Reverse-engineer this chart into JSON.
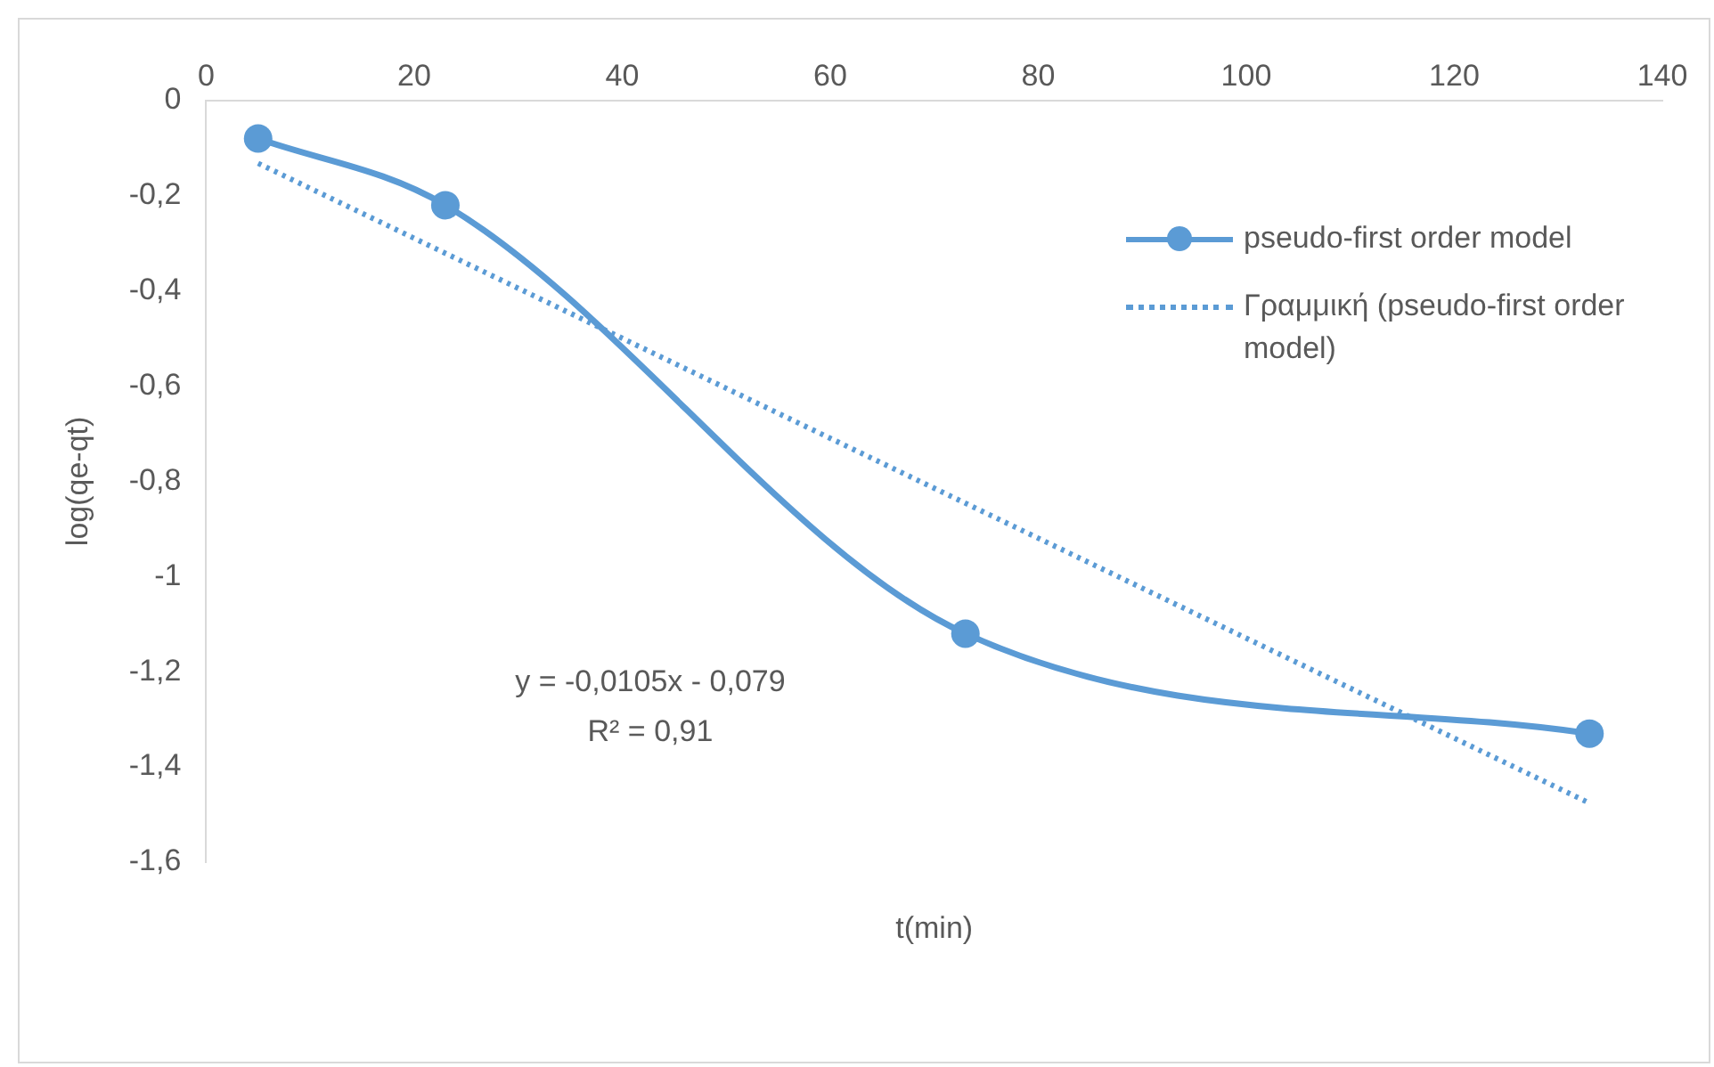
{
  "chart_data": {
    "type": "line",
    "xlabel": "t(min)",
    "ylabel": "log(qe-qt)",
    "xlim": [
      0,
      140
    ],
    "xticks": [
      0,
      20,
      40,
      60,
      80,
      100,
      120,
      140
    ],
    "ylim": [
      -1.6,
      0
    ],
    "yticks": [
      {
        "value": 0,
        "label": "0"
      },
      {
        "value": -0.2,
        "label": "-0,2"
      },
      {
        "value": -0.4,
        "label": "-0,4"
      },
      {
        "value": -0.6,
        "label": "-0,6"
      },
      {
        "value": -0.8,
        "label": "-0,8"
      },
      {
        "value": -1,
        "label": "-1"
      },
      {
        "value": -1.2,
        "label": "-1,2"
      },
      {
        "value": -1.4,
        "label": "-1,4"
      },
      {
        "value": -1.6,
        "label": "-1,6"
      }
    ],
    "grid": false,
    "legend": "top right",
    "series": [
      {
        "name": "pseudo-first order model",
        "color": "#5b9bd5",
        "x": [
          5,
          23,
          73,
          133
        ],
        "values": [
          -0.08,
          -0.22,
          -1.12,
          -1.33
        ],
        "marker": "circle",
        "line_style": "solid"
      },
      {
        "name": "Γραμμική (pseudo-first order model)",
        "color": "#5b9bd5",
        "x": [
          5,
          133
        ],
        "values": [
          -0.132,
          -1.476
        ],
        "marker": "none",
        "line_style": "dotted"
      }
    ],
    "annotations": [
      "y = -0,0105x - 0,079",
      "R² = 0,91"
    ]
  }
}
